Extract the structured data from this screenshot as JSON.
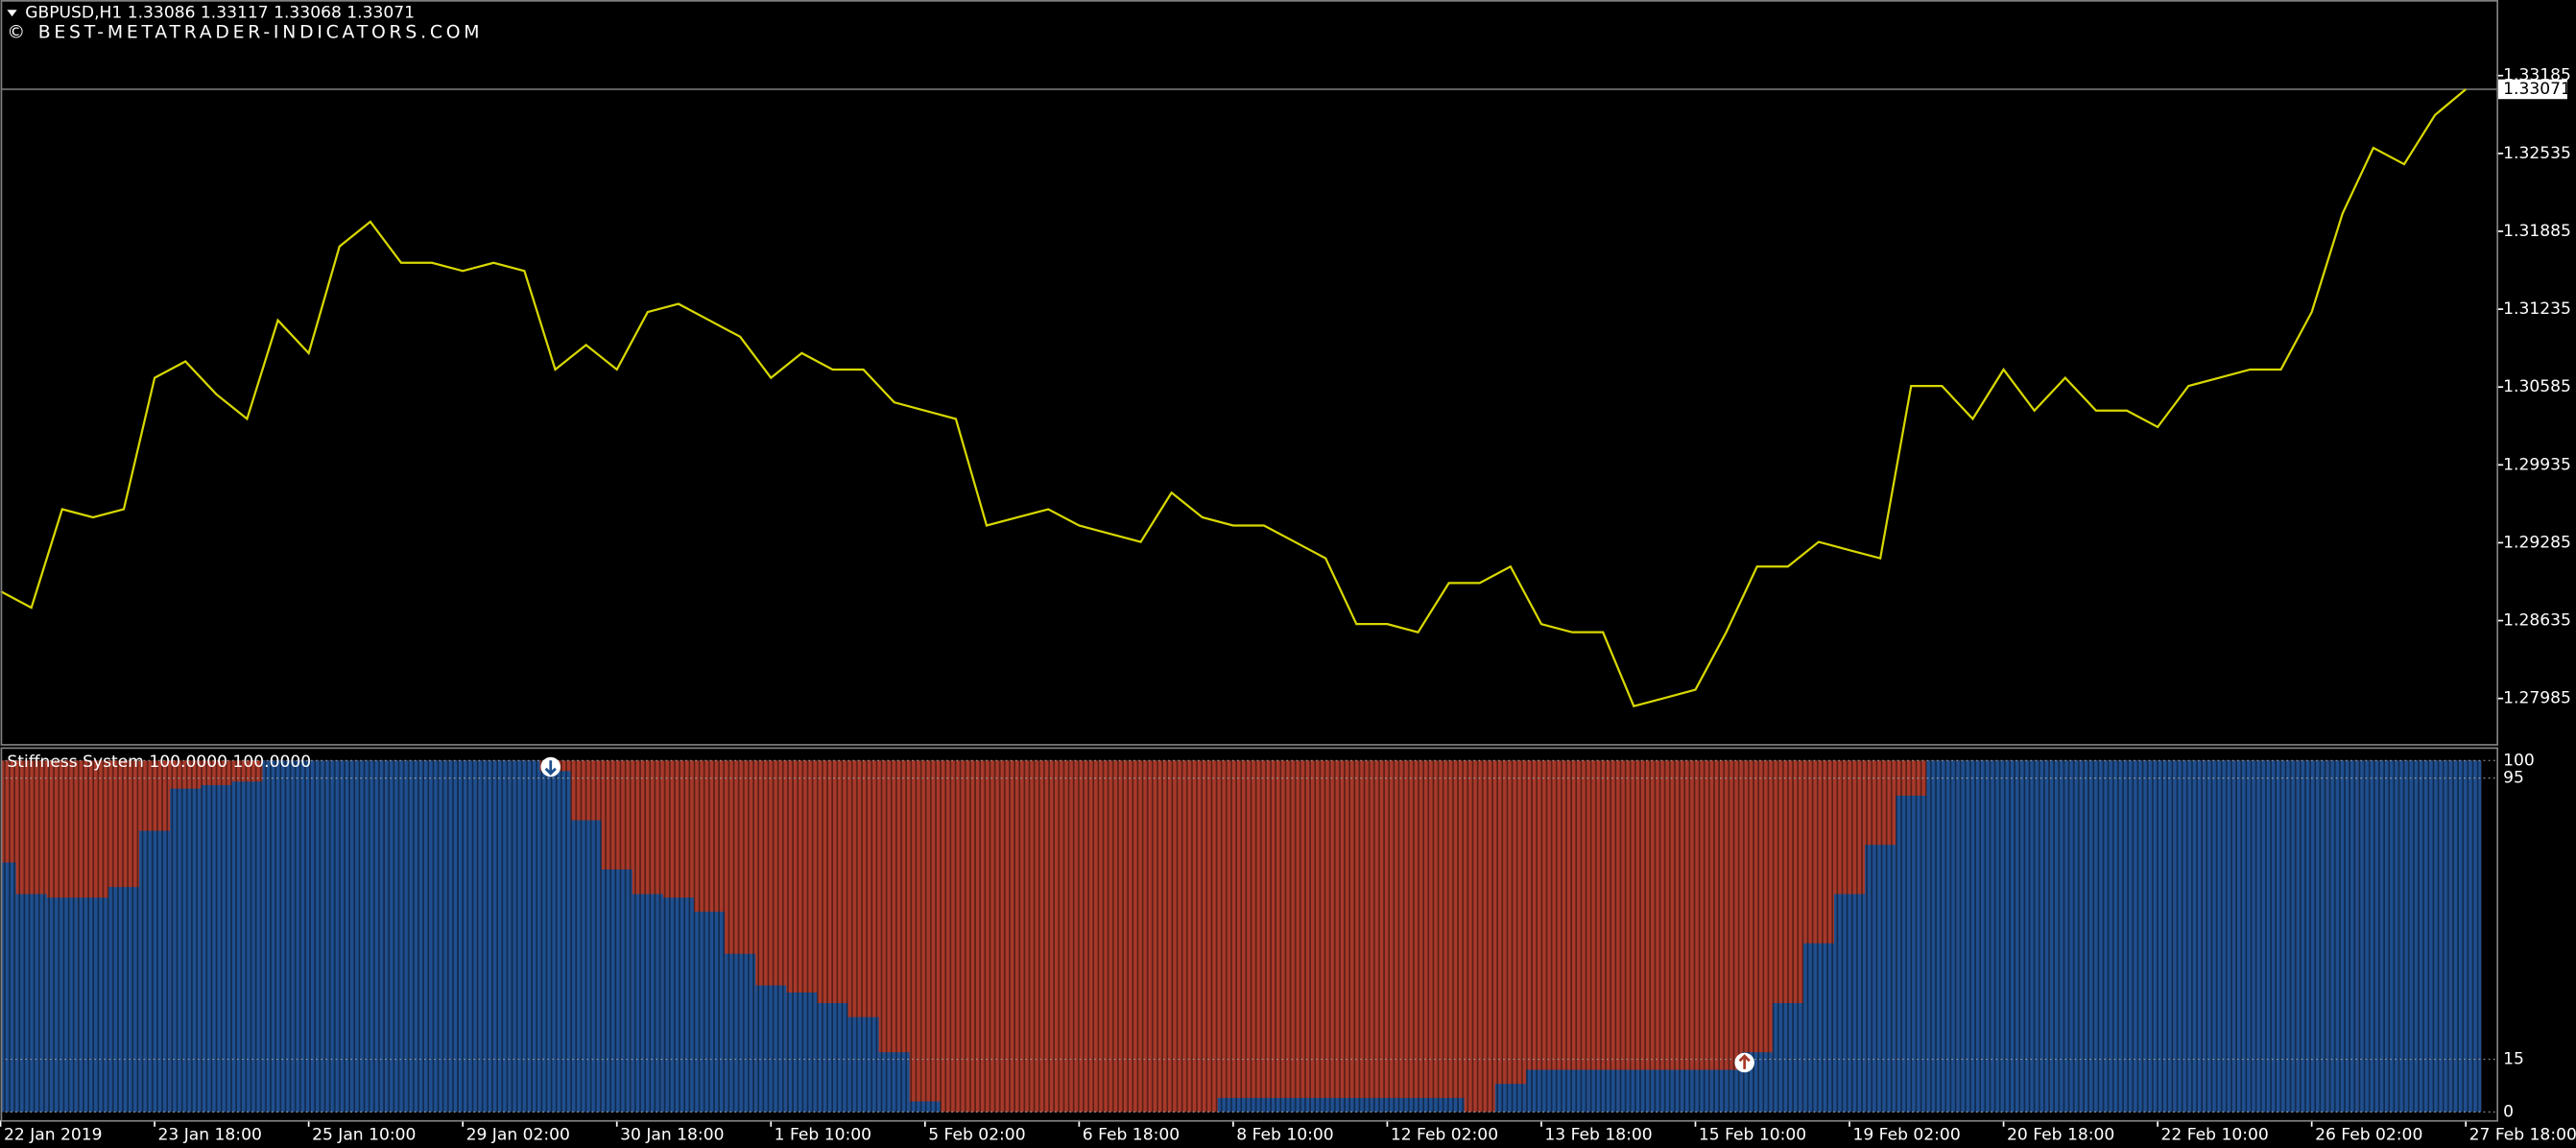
{
  "chart_data": [
    {
      "type": "line",
      "title": "GBPUSD,H1  1.33086 1.33117 1.33068 1.33071",
      "watermark": "© BEST-METATRADER-INDICATORS.COM",
      "color": "#d8d800",
      "xlim": [
        0,
        81
      ],
      "ylim": [
        1.27605,
        1.33816
      ],
      "yticks": [
        1.27985,
        1.28635,
        1.29285,
        1.29935,
        1.30585,
        1.31235,
        1.31885,
        1.32535,
        1.33185
      ],
      "current_price": 1.33071,
      "values": [
        1.2888,
        1.28743,
        1.29565,
        1.29497,
        1.29565,
        1.30662,
        1.30799,
        1.30525,
        1.30319,
        1.31142,
        1.30868,
        1.31759,
        1.31965,
        1.31622,
        1.31622,
        1.31554,
        1.31622,
        1.31554,
        1.30731,
        1.30936,
        1.30731,
        1.31211,
        1.31279,
        1.31142,
        1.31005,
        1.30662,
        1.30868,
        1.30731,
        1.30731,
        1.30457,
        1.30388,
        1.30319,
        1.29429,
        1.29497,
        1.29565,
        1.29429,
        1.2936,
        1.29292,
        1.29703,
        1.29497,
        1.29429,
        1.29429,
        1.29292,
        1.29155,
        1.28606,
        1.28606,
        1.28538,
        1.28949,
        1.28949,
        1.29086,
        1.28606,
        1.28538,
        1.28538,
        1.27921,
        1.27989,
        1.28058,
        1.28538,
        1.29086,
        1.29086,
        1.29292,
        1.29223,
        1.29155,
        1.30594,
        1.30594,
        1.30319,
        1.30731,
        1.30388,
        1.30662,
        1.30388,
        1.30388,
        1.30251,
        1.30594,
        1.30662,
        1.30731,
        1.30731,
        1.31211,
        1.32034,
        1.32582,
        1.32445,
        1.32856,
        1.33071
      ]
    },
    {
      "type": "bar",
      "title": "Stiffness System 100.0000 100.0000",
      "color": "#1f4f8f",
      "background_color": "#a8392a",
      "xlim": [
        0,
        81
      ],
      "xticks": [
        {
          "value": 0,
          "label": "22 Jan 2019"
        },
        {
          "value": 5,
          "label": "23 Jan 18:00"
        },
        {
          "value": 10,
          "label": "25 Jan 10:00"
        },
        {
          "value": 15,
          "label": "29 Jan 02:00"
        },
        {
          "value": 20,
          "label": "30 Jan 18:00"
        },
        {
          "value": 25,
          "label": "1 Feb 10:00"
        },
        {
          "value": 30,
          "label": "5 Feb 02:00"
        },
        {
          "value": 35,
          "label": "6 Feb 18:00"
        },
        {
          "value": 40,
          "label": "8 Feb 10:00"
        },
        {
          "value": 45,
          "label": "12 Feb 02:00"
        },
        {
          "value": 50,
          "label": "13 Feb 18:00"
        },
        {
          "value": 55,
          "label": "15 Feb 10:00"
        },
        {
          "value": 60,
          "label": "19 Feb 02:00"
        },
        {
          "value": 65,
          "label": "20 Feb 18:00"
        },
        {
          "value": 70,
          "label": "22 Feb 10:00"
        },
        {
          "value": 75,
          "label": "26 Feb 02:00"
        },
        {
          "value": 80,
          "label": "27 Feb 18:00"
        }
      ],
      "ylim": [
        -2.3,
        103.3
      ],
      "yticks": [
        0,
        15,
        95,
        100
      ],
      "max": 100,
      "values": [
        71,
        62,
        61,
        61,
        64,
        80,
        92,
        93,
        94,
        100,
        100,
        100,
        100,
        100,
        100,
        100,
        100,
        100,
        97,
        83,
        69,
        62,
        61,
        57,
        45,
        36,
        34,
        31,
        27,
        17,
        3,
        0,
        0,
        0,
        0,
        0,
        0,
        0,
        0,
        0,
        4,
        4,
        4,
        4,
        4,
        4,
        4,
        4,
        0,
        8,
        12,
        12,
        12,
        12,
        12,
        12,
        12,
        17,
        31,
        48,
        62,
        76,
        90,
        100,
        100,
        100,
        100,
        100,
        100,
        100,
        100,
        100,
        100,
        100,
        100,
        100,
        100,
        100,
        100,
        100,
        100
      ]
    }
  ]
}
